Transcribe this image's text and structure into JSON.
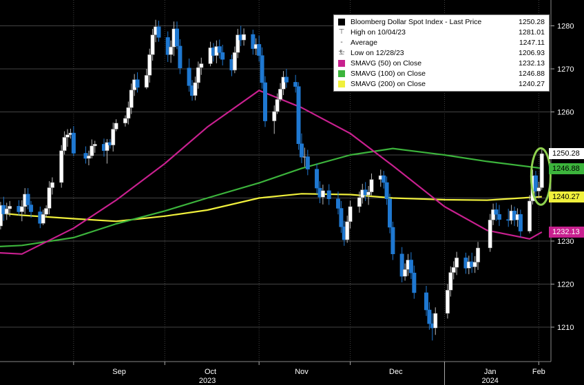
{
  "chart_data": {
    "type": "candlestick",
    "title": "Bloomberg Dollar Spot Index",
    "y_axis": {
      "ticks": [
        1210,
        1220,
        1230,
        1240,
        1250,
        1260,
        1270,
        1280
      ],
      "range": [
        1202,
        1286
      ],
      "position": "right"
    },
    "x_axis": {
      "month_labels": [
        "Sep",
        "Oct",
        "Nov",
        "Dec",
        "Jan",
        "Feb"
      ],
      "year_labels": [
        "2023",
        "2024"
      ],
      "range": [
        "2023-08-01",
        "2024-02-05"
      ]
    },
    "grid": true,
    "legend_position": "top-right",
    "legend": [
      {
        "label": "Bloomberg Dollar Spot Index - Last Price",
        "value": "1250.28",
        "glyph": "candle"
      },
      {
        "label": "High on 10/04/23",
        "value": "1281.01",
        "glyph": "high"
      },
      {
        "label": "Average",
        "value": "1247.11",
        "glyph": "avg"
      },
      {
        "label": "Low on 12/28/23",
        "value": "1206.93",
        "glyph": "low"
      },
      {
        "label": "SMAVG (50)  on Close",
        "value": "1232.13",
        "color": "#c8208f"
      },
      {
        "label": "SMAVG (100)  on Close",
        "value": "1246.88",
        "color": "#3cb43c"
      },
      {
        "label": "SMAVG (200)  on Close",
        "value": "1240.27",
        "color": "#f0f03c"
      }
    ],
    "value_tags": [
      {
        "text": "1250.28",
        "value": 1250.28,
        "bg": "#ffffff",
        "fg": "#000000"
      },
      {
        "text": "1246.88",
        "value": 1246.88,
        "bg": "#3cb43c",
        "fg": "#000000"
      },
      {
        "text": "1240.27",
        "value": 1240.27,
        "bg": "#f0f03c",
        "fg": "#000000"
      },
      {
        "text": "1232.13",
        "value": 1232.13,
        "bg": "#c8208f",
        "fg": "#ffffff"
      }
    ],
    "highlight": {
      "label": "latest-candle",
      "center_date": "2024-02-01",
      "center_value": 1245,
      "color": "#8fd14f"
    },
    "candles_ohlc": [
      [
        "2023-08-01",
        1236.4,
        1238.5,
        1234.4,
        1237.1
      ],
      [
        "2023-08-02",
        1237.1,
        1240.2,
        1235.9,
        1238.5
      ],
      [
        "2023-08-03",
        1238.5,
        1241.2,
        1234.1,
        1235.6
      ],
      [
        "2023-08-04",
        1235.6,
        1237.6,
        1233.8,
        1235.8
      ],
      [
        "2023-08-07",
        1235.8,
        1237.2,
        1231.9,
        1233.5
      ],
      [
        "2023-08-08",
        1233.5,
        1239.1,
        1232.7,
        1238.3
      ],
      [
        "2023-08-09",
        1238.3,
        1240.3,
        1234.7,
        1236.3
      ],
      [
        "2023-08-10",
        1236.3,
        1238.9,
        1234.9,
        1237.5
      ],
      [
        "2023-08-11",
        1237.5,
        1239.3,
        1235.7,
        1238.1
      ],
      [
        "2023-08-14",
        1238.1,
        1239.5,
        1236.0,
        1236.8
      ],
      [
        "2023-08-15",
        1236.8,
        1239.5,
        1234.6,
        1238.0
      ],
      [
        "2023-08-16",
        1238.0,
        1242.3,
        1236.3,
        1240.9
      ],
      [
        "2023-08-17",
        1240.9,
        1242.3,
        1237.4,
        1238.4
      ],
      [
        "2023-08-18",
        1238.4,
        1239.3,
        1235.4,
        1236.8
      ],
      [
        "2023-08-21",
        1236.8,
        1238.0,
        1233.0,
        1234.1
      ],
      [
        "2023-08-22",
        1234.1,
        1237.3,
        1233.7,
        1236.2
      ],
      [
        "2023-08-23",
        1236.2,
        1238.3,
        1235.5,
        1237.6
      ],
      [
        "2023-08-24",
        1237.6,
        1243.9,
        1236.2,
        1242.4
      ],
      [
        "2023-08-25",
        1242.4,
        1244.8,
        1240.8,
        1243.6
      ],
      [
        "2023-08-28",
        1243.6,
        1252.3,
        1242.4,
        1251.0
      ],
      [
        "2023-08-29",
        1251.0,
        1255.5,
        1250.1,
        1254.1
      ],
      [
        "2023-08-30",
        1254.1,
        1256.0,
        1251.9,
        1254.7
      ],
      [
        "2023-08-31",
        1254.7,
        1256.1,
        1253.8,
        1255.1
      ],
      [
        "2023-09-01",
        1255.1,
        1256.7,
        1249.7,
        1250.4
      ],
      [
        "2023-09-05",
        1250.4,
        1252.0,
        1248.0,
        1249.2
      ],
      [
        "2023-09-06",
        1249.2,
        1251.0,
        1247.6,
        1249.8
      ],
      [
        "2023-09-07",
        1249.8,
        1253.6,
        1249.2,
        1252.1
      ],
      [
        "2023-09-08",
        1252.1,
        1253.3,
        1250.5,
        1252.5
      ],
      [
        "2023-09-11",
        1252.5,
        1253.8,
        1249.6,
        1251.0
      ],
      [
        "2023-09-12",
        1251.0,
        1253.7,
        1248.0,
        1252.9
      ],
      [
        "2023-09-13",
        1252.9,
        1253.7,
        1251.5,
        1252.3
      ],
      [
        "2023-09-14",
        1252.3,
        1257.5,
        1250.8,
        1256.0
      ],
      [
        "2023-09-15",
        1256.0,
        1258.3,
        1255.5,
        1257.4
      ],
      [
        "2023-09-18",
        1257.4,
        1259.2,
        1256.6,
        1258.5
      ],
      [
        "2023-09-19",
        1258.5,
        1262.4,
        1257.1,
        1261.0
      ],
      [
        "2023-09-20",
        1261.0,
        1266.6,
        1259.5,
        1265.1
      ],
      [
        "2023-09-21",
        1265.1,
        1268.8,
        1263.7,
        1267.5
      ],
      [
        "2023-09-22",
        1267.5,
        1269.2,
        1264.5,
        1265.7
      ],
      [
        "2023-09-25",
        1265.7,
        1270.0,
        1265.3,
        1268.5
      ],
      [
        "2023-09-26",
        1268.5,
        1274.7,
        1266.8,
        1273.3
      ],
      [
        "2023-09-27",
        1273.3,
        1279.3,
        1271.9,
        1277.9
      ],
      [
        "2023-09-28",
        1277.9,
        1281.4,
        1276.2,
        1279.8
      ],
      [
        "2023-09-29",
        1279.8,
        1281.2,
        1276.3,
        1277.3
      ],
      [
        "2023-10-02",
        1277.3,
        1278.7,
        1271.6,
        1273.3
      ],
      [
        "2023-10-03",
        1273.3,
        1276.6,
        1271.4,
        1275.1
      ],
      [
        "2023-10-04",
        1275.1,
        1281.0,
        1273.0,
        1279.3
      ],
      [
        "2023-10-05",
        1279.3,
        1281.0,
        1274.6,
        1275.3
      ],
      [
        "2023-10-06",
        1275.3,
        1276.9,
        1268.8,
        1270.2
      ],
      [
        "2023-10-09",
        1270.2,
        1272.4,
        1264.7,
        1266.1
      ],
      [
        "2023-10-10",
        1266.1,
        1267.4,
        1262.6,
        1263.8
      ],
      [
        "2023-10-11",
        1263.8,
        1268.2,
        1262.7,
        1266.8
      ],
      [
        "2023-10-12",
        1266.8,
        1271.7,
        1265.4,
        1270.3
      ],
      [
        "2023-10-13",
        1270.3,
        1272.6,
        1268.6,
        1271.2
      ],
      [
        "2023-10-16",
        1271.2,
        1276.3,
        1270.6,
        1274.9
      ],
      [
        "2023-10-17",
        1274.9,
        1276.0,
        1271.7,
        1273.1
      ],
      [
        "2023-10-18",
        1273.1,
        1276.6,
        1271.3,
        1275.2
      ],
      [
        "2023-10-19",
        1275.2,
        1276.8,
        1272.4,
        1273.8
      ],
      [
        "2023-10-20",
        1273.8,
        1275.6,
        1270.8,
        1272.2
      ],
      [
        "2023-10-23",
        1272.2,
        1273.3,
        1268.3,
        1269.7
      ],
      [
        "2023-10-24",
        1269.7,
        1275.2,
        1269.0,
        1273.8
      ],
      [
        "2023-10-25",
        1273.8,
        1279.3,
        1272.5,
        1277.9
      ],
      [
        "2023-10-26",
        1277.9,
        1280.0,
        1275.3,
        1276.7
      ],
      [
        "2023-10-27",
        1276.7,
        1279.4,
        1275.4,
        1278.0
      ],
      [
        "2023-10-30",
        1278.0,
        1279.1,
        1273.3,
        1274.7
      ],
      [
        "2023-10-31",
        1274.7,
        1277.1,
        1273.2,
        1275.7
      ],
      [
        "2023-11-01",
        1275.7,
        1277.7,
        1271.7,
        1273.1
      ],
      [
        "2023-11-02",
        1273.1,
        1275.0,
        1265.4,
        1266.8
      ],
      [
        "2023-11-03",
        1266.8,
        1268.3,
        1256.5,
        1257.9
      ],
      [
        "2023-11-06",
        1257.9,
        1261.5,
        1254.9,
        1260.1
      ],
      [
        "2023-11-07",
        1260.1,
        1264.3,
        1259.5,
        1262.9
      ],
      [
        "2023-11-08",
        1262.9,
        1266.7,
        1262.4,
        1265.3
      ],
      [
        "2023-11-09",
        1265.3,
        1269.5,
        1263.9,
        1268.1
      ],
      [
        "2023-11-10",
        1268.1,
        1270.0,
        1265.6,
        1266.9
      ],
      [
        "2023-11-13",
        1266.9,
        1268.6,
        1264.5,
        1265.9
      ],
      [
        "2023-11-14",
        1265.9,
        1266.9,
        1251.2,
        1252.6
      ],
      [
        "2023-11-15",
        1252.6,
        1255.0,
        1248.1,
        1249.5
      ],
      [
        "2023-11-16",
        1249.5,
        1251.7,
        1247.3,
        1249.6
      ],
      [
        "2023-11-17",
        1249.6,
        1251.2,
        1245.3,
        1246.7
      ],
      [
        "2023-11-20",
        1246.7,
        1248.0,
        1240.9,
        1242.3
      ],
      [
        "2023-11-21",
        1242.3,
        1243.9,
        1238.8,
        1240.2
      ],
      [
        "2023-11-22",
        1240.2,
        1243.1,
        1238.5,
        1241.7
      ],
      [
        "2023-11-24",
        1241.7,
        1243.2,
        1238.4,
        1239.8
      ],
      [
        "2023-11-27",
        1239.8,
        1241.5,
        1236.2,
        1237.6
      ],
      [
        "2023-11-28",
        1237.6,
        1239.3,
        1231.9,
        1233.3
      ],
      [
        "2023-11-29",
        1233.3,
        1234.7,
        1228.9,
        1230.3
      ],
      [
        "2023-11-30",
        1230.3,
        1235.9,
        1229.6,
        1234.5
      ],
      [
        "2023-12-01",
        1234.5,
        1239.4,
        1232.9,
        1238.0
      ],
      [
        "2023-12-04",
        1238.0,
        1241.5,
        1236.6,
        1240.1
      ],
      [
        "2023-12-05",
        1240.1,
        1243.3,
        1238.7,
        1241.9
      ],
      [
        "2023-12-06",
        1241.9,
        1243.7,
        1239.3,
        1240.7
      ],
      [
        "2023-12-07",
        1240.7,
        1242.8,
        1238.4,
        1241.4
      ],
      [
        "2023-12-08",
        1241.4,
        1245.7,
        1240.6,
        1244.3
      ],
      [
        "2023-12-11",
        1244.3,
        1246.6,
        1242.6,
        1245.2
      ],
      [
        "2023-12-12",
        1245.2,
        1246.3,
        1242.2,
        1243.6
      ],
      [
        "2023-12-13",
        1243.6,
        1245.0,
        1238.4,
        1239.8
      ],
      [
        "2023-12-14",
        1239.8,
        1241.0,
        1231.8,
        1233.2
      ],
      [
        "2023-12-15",
        1233.2,
        1234.5,
        1225.6,
        1227.0
      ],
      [
        "2023-12-18",
        1227.0,
        1228.6,
        1220.4,
        1221.8
      ],
      [
        "2023-12-19",
        1221.8,
        1224.8,
        1220.8,
        1223.4
      ],
      [
        "2023-12-20",
        1223.4,
        1227.0,
        1221.9,
        1225.6
      ],
      [
        "2023-12-21",
        1225.6,
        1227.4,
        1221.2,
        1222.6
      ],
      [
        "2023-12-22",
        1222.6,
        1224.3,
        1216.6,
        1218.0
      ],
      [
        "2023-12-26",
        1218.0,
        1219.6,
        1212.6,
        1214.0
      ],
      [
        "2023-12-27",
        1214.0,
        1215.8,
        1209.4,
        1210.8
      ],
      [
        "2023-12-28",
        1210.8,
        1213.2,
        1206.9,
        1209.8
      ],
      [
        "2023-12-29",
        1209.8,
        1214.6,
        1208.2,
        1213.2
      ],
      [
        "2024-01-02",
        1213.2,
        1220.0,
        1212.0,
        1218.6
      ],
      [
        "2024-01-03",
        1218.6,
        1224.1,
        1217.1,
        1222.7
      ],
      [
        "2024-01-04",
        1222.7,
        1225.3,
        1221.1,
        1223.9
      ],
      [
        "2024-01-05",
        1223.9,
        1227.5,
        1222.1,
        1226.1
      ],
      [
        "2024-01-08",
        1226.1,
        1227.3,
        1222.4,
        1223.7
      ],
      [
        "2024-01-09",
        1223.7,
        1226.6,
        1222.3,
        1225.2
      ],
      [
        "2024-01-10",
        1225.2,
        1227.3,
        1222.6,
        1224.0
      ],
      [
        "2024-01-11",
        1224.0,
        1226.5,
        1222.6,
        1225.1
      ],
      [
        "2024-01-12",
        1225.1,
        1229.8,
        1223.3,
        1228.4
      ],
      [
        "2024-01-16",
        1228.4,
        1236.3,
        1227.5,
        1234.9
      ],
      [
        "2024-01-17",
        1234.9,
        1238.7,
        1233.7,
        1237.3
      ],
      [
        "2024-01-18",
        1237.3,
        1238.9,
        1234.7,
        1236.2
      ],
      [
        "2024-01-19",
        1236.2,
        1238.4,
        1233.5,
        1235.0
      ],
      [
        "2024-01-22",
        1235.0,
        1237.5,
        1233.3,
        1234.8
      ],
      [
        "2024-01-23",
        1234.8,
        1238.4,
        1233.9,
        1237.0
      ],
      [
        "2024-01-24",
        1237.0,
        1238.0,
        1233.5,
        1234.9
      ],
      [
        "2024-01-25",
        1234.9,
        1237.6,
        1233.3,
        1236.2
      ],
      [
        "2024-01-26",
        1236.2,
        1237.3,
        1230.9,
        1232.3
      ],
      [
        "2024-01-29",
        1232.3,
        1240.7,
        1231.8,
        1239.3
      ],
      [
        "2024-01-30",
        1239.3,
        1246.6,
        1238.5,
        1245.2
      ],
      [
        "2024-01-31",
        1245.2,
        1246.3,
        1240.2,
        1241.6
      ],
      [
        "2024-02-01",
        1241.6,
        1243.8,
        1240.0,
        1242.4
      ],
      [
        "2024-02-02",
        1242.4,
        1251.5,
        1241.9,
        1250.3
      ]
    ],
    "sma_50": [
      [
        "2023-08-01",
        1227.5
      ],
      [
        "2023-08-15",
        1227.0
      ],
      [
        "2023-09-01",
        1233.0
      ],
      [
        "2023-09-15",
        1239.5
      ],
      [
        "2023-10-01",
        1248.0
      ],
      [
        "2023-10-15",
        1256.5
      ],
      [
        "2023-11-01",
        1265.0
      ],
      [
        "2023-11-15",
        1261.0
      ],
      [
        "2023-12-01",
        1255.0
      ],
      [
        "2023-12-15",
        1247.5
      ],
      [
        "2024-01-01",
        1238.0
      ],
      [
        "2024-01-15",
        1232.5
      ],
      [
        "2024-01-29",
        1230.5
      ],
      [
        "2024-02-02",
        1232.1
      ]
    ],
    "sma_100": [
      [
        "2023-08-01",
        1228.5
      ],
      [
        "2023-08-15",
        1229.0
      ],
      [
        "2023-09-01",
        1230.8
      ],
      [
        "2023-09-15",
        1234.0
      ],
      [
        "2023-10-01",
        1237.0
      ],
      [
        "2023-10-15",
        1240.0
      ],
      [
        "2023-11-01",
        1243.5
      ],
      [
        "2023-11-15",
        1246.9
      ],
      [
        "2023-12-01",
        1250.0
      ],
      [
        "2023-12-15",
        1251.5
      ],
      [
        "2024-01-01",
        1250.0
      ],
      [
        "2024-01-15",
        1248.5
      ],
      [
        "2024-02-02",
        1246.9
      ]
    ],
    "sma_200": [
      [
        "2023-08-01",
        1237.0
      ],
      [
        "2023-08-15",
        1236.0
      ],
      [
        "2023-09-01",
        1235.2
      ],
      [
        "2023-09-15",
        1234.6
      ],
      [
        "2023-10-01",
        1235.8
      ],
      [
        "2023-10-15",
        1237.2
      ],
      [
        "2023-11-01",
        1240.0
      ],
      [
        "2023-11-15",
        1241.0
      ],
      [
        "2023-12-01",
        1240.8
      ],
      [
        "2023-12-15",
        1240.0
      ],
      [
        "2024-01-01",
        1239.6
      ],
      [
        "2024-01-15",
        1239.5
      ],
      [
        "2024-02-02",
        1240.3
      ]
    ],
    "colors": {
      "up": "#ffffff",
      "down": "#1f78d1",
      "grid": "#444444",
      "axis_text": "#ffffff"
    }
  }
}
